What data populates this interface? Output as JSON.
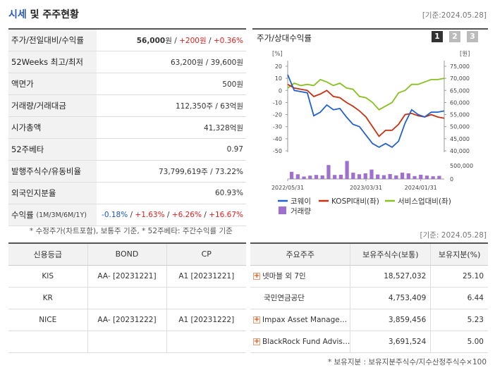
{
  "header": {
    "title_hl": "시세",
    "title_rest": " 및 주주현황",
    "basedate": "[기준:2024.05.28]"
  },
  "summary_rows": [
    {
      "label": "주가/전일대비/수익률"
    },
    {
      "label": "52Weeks 최고/최저",
      "value": "63,200원 / 39,600원"
    },
    {
      "label": "액면가",
      "value": "500원"
    },
    {
      "label": "거래량/거래대금",
      "value": "112,350주 / 63억원"
    },
    {
      "label": "시가총액",
      "value": "41,328억원"
    },
    {
      "label": "52주베타",
      "value": "0.97"
    },
    {
      "label": "발행주식수/유동비율",
      "value": "73,799,619주 / 73.22%"
    },
    {
      "label": "외국인지분율",
      "value": "60.93%"
    },
    {
      "label": "수익률",
      "label_small": "(1M/3M/6M/1Y)"
    }
  ],
  "price": {
    "close": "56,000",
    "close_unit": "원",
    "change": "+200원",
    "pct": "+0.36%",
    "sep": " / "
  },
  "returns": [
    "-0.18%",
    "+1.63%",
    "+6.26%",
    "+16.67%"
  ],
  "footnote_left": "* 수정주가(차트포함), 보통주 기준, * 52주베타: 주간수익률 기준",
  "chart": {
    "title": "주가/상대수익률",
    "pages": [
      "1",
      "2",
      "3"
    ],
    "left_unit": "[%]",
    "right_unit": "[원]",
    "legend": [
      "코웨이",
      "KOSPI대비(좌)",
      "서비스업대비(좌)",
      "거래량"
    ]
  },
  "chart_data": {
    "type": "line",
    "x_ticks": [
      "2022/05/31",
      "2023/03/31",
      "2024/01/31"
    ],
    "left_axis": {
      "ticks": [
        20,
        10,
        0,
        -10,
        -20,
        -30,
        -40,
        -50
      ],
      "ylim": [
        -50,
        20
      ]
    },
    "right_axis": {
      "ticks": [
        75000,
        70000,
        65000,
        60000,
        55000,
        50000,
        45000,
        40000
      ],
      "ylim": [
        40000,
        75000
      ]
    },
    "volume_axis": {
      "ticks": [
        "500,000",
        "0"
      ]
    },
    "colors": {
      "price": "#2060d0",
      "kospi": "#c83010",
      "service": "#88c020",
      "volume": "#a070d0"
    },
    "series": [
      {
        "name": "코웨이",
        "values": [
          13,
          0,
          -1,
          -2,
          -21,
          -18,
          -12,
          -16,
          -15,
          -22,
          -28,
          -30,
          -37,
          -44,
          -47,
          -44,
          -47,
          -42,
          -27,
          -16,
          -20,
          -22,
          -18,
          -18,
          -17
        ]
      },
      {
        "name": "KOSPI대비(좌)",
        "values": [
          5,
          2,
          1,
          0,
          -5,
          -3,
          0,
          -5,
          -6,
          -10,
          -13,
          -17,
          -22,
          -30,
          -38,
          -33,
          -33,
          -28,
          -20,
          -19,
          -21,
          -22,
          -20,
          -22,
          -23
        ]
      },
      {
        "name": "서비스업대비(좌)",
        "values": [
          2,
          6,
          4,
          5,
          4,
          9,
          7,
          4,
          6,
          2,
          1,
          -5,
          -6,
          -10,
          -16,
          -13,
          -10,
          -2,
          0,
          5,
          5,
          7,
          9,
          9,
          10
        ]
      },
      {
        "name": "거래량",
        "values": [
          320000,
          210000,
          110000,
          150000,
          180000,
          160000,
          620000,
          180000,
          190000,
          800000,
          280000,
          210000,
          250000,
          420000,
          200000,
          170000,
          220000,
          160000,
          280000,
          250000,
          130000,
          190000,
          150000,
          120000,
          140000
        ]
      }
    ]
  },
  "credit": {
    "headers": [
      "신용등급",
      "BOND",
      "CP"
    ],
    "rows": [
      [
        "KIS",
        "AA-  [20231221]",
        "A1  [20231221]"
      ],
      [
        "KR",
        "",
        ""
      ],
      [
        "NICE",
        "AA-  [20231222]",
        "A1  [20231222]"
      ],
      [
        "",
        "",
        ""
      ]
    ]
  },
  "holders": {
    "basedate": "[기준: 2024.05.28]",
    "headers": [
      "주요주주",
      "보유주식수(보통)",
      "보유지분(%)"
    ],
    "rows": [
      {
        "name": "넷마블 외 7인",
        "shares": "18,527,032",
        "pct": "25.10",
        "expand": true
      },
      {
        "name": "국민연금공단",
        "shares": "4,753,409",
        "pct": "6.44",
        "expand": false
      },
      {
        "name": "Impax Asset Manage…",
        "shares": "3,859,456",
        "pct": "5.23",
        "expand": true
      },
      {
        "name": "BlackRock Fund Advis…",
        "shares": "3,691,524",
        "pct": "5.00",
        "expand": true
      }
    ],
    "expand_glyph": "+",
    "footnote": "* 보유지분 : 보유지분주식수/지수산정주식수×100"
  }
}
